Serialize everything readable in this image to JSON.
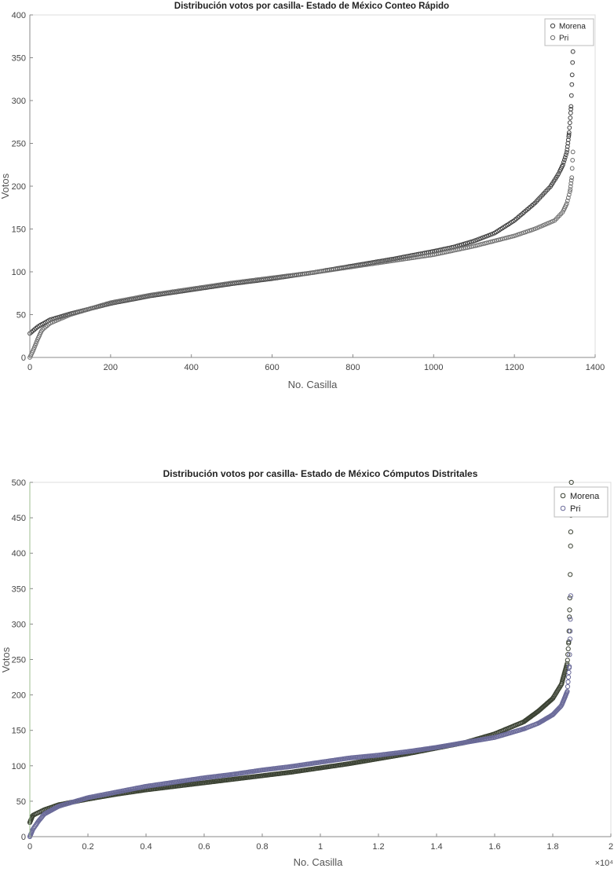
{
  "chart_data": [
    {
      "type": "scatter",
      "title": "Distribución votos por casilla- Estado de México Conteo Rápido",
      "xlabel": "No. Casilla",
      "ylabel": "Votos",
      "xlim": [
        0,
        1400
      ],
      "ylim": [
        0,
        400
      ],
      "xticks": [
        0,
        200,
        400,
        600,
        800,
        1000,
        1200,
        1400
      ],
      "yticks": [
        0,
        50,
        100,
        150,
        200,
        250,
        300,
        350,
        400
      ],
      "xtick_labels": [
        "0",
        "200",
        "400",
        "600",
        "800",
        "1000",
        "1200",
        "1400"
      ],
      "ytick_labels": [
        "0",
        "50",
        "100",
        "150",
        "200",
        "250",
        "300",
        "350",
        "400"
      ],
      "exponent_label": "",
      "legend_position": "top-right",
      "series": [
        {
          "name": "Morena",
          "color": "#3d3d3d",
          "points": [
            [
              0,
              28
            ],
            [
              20,
              36
            ],
            [
              50,
              44
            ],
            [
              100,
              51
            ],
            [
              150,
              57
            ],
            [
              200,
              63
            ],
            [
              300,
              72
            ],
            [
              400,
              79
            ],
            [
              500,
              86
            ],
            [
              600,
              92
            ],
            [
              700,
              99
            ],
            [
              800,
              107
            ],
            [
              900,
              115
            ],
            [
              1000,
              124
            ],
            [
              1050,
              129
            ],
            [
              1100,
              136
            ],
            [
              1150,
              145
            ],
            [
              1200,
              160
            ],
            [
              1250,
              180
            ],
            [
              1290,
              200
            ],
            [
              1310,
              215
            ],
            [
              1320,
              225
            ],
            [
              1330,
              240
            ],
            [
              1335,
              260
            ],
            [
              1340,
              290
            ],
            [
              1343,
              330
            ],
            [
              1346,
              370
            ]
          ]
        },
        {
          "name": "Pri",
          "color": "#6e6e6e",
          "points": [
            [
              0,
              0
            ],
            [
              10,
              10
            ],
            [
              20,
              22
            ],
            [
              30,
              32
            ],
            [
              50,
              40
            ],
            [
              100,
              50
            ],
            [
              150,
              57
            ],
            [
              200,
              64
            ],
            [
              300,
              73
            ],
            [
              400,
              80
            ],
            [
              500,
              87
            ],
            [
              600,
              93
            ],
            [
              700,
              99
            ],
            [
              800,
              106
            ],
            [
              900,
              113
            ],
            [
              1000,
              120
            ],
            [
              1100,
              130
            ],
            [
              1150,
              136
            ],
            [
              1200,
              142
            ],
            [
              1250,
              150
            ],
            [
              1300,
              160
            ],
            [
              1320,
              170
            ],
            [
              1330,
              180
            ],
            [
              1338,
              195
            ],
            [
              1342,
              210
            ],
            [
              1345,
              240
            ]
          ]
        }
      ]
    },
    {
      "type": "scatter",
      "title": "Distribución votos por casilla- Estado de México Cómputos Distritales",
      "xlabel": "No. Casilla",
      "ylabel": "Votos",
      "xlim": [
        0,
        20000
      ],
      "ylim": [
        0,
        500
      ],
      "xticks": [
        0,
        2000,
        4000,
        6000,
        8000,
        10000,
        12000,
        14000,
        16000,
        18000,
        20000
      ],
      "yticks": [
        0,
        50,
        100,
        150,
        200,
        250,
        300,
        350,
        400,
        450,
        500
      ],
      "xtick_labels": [
        "0",
        "0.2",
        "0.4",
        "0.6",
        "0.8",
        "1",
        "1.2",
        "1.4",
        "1.6",
        "1.8",
        "2"
      ],
      "ytick_labels": [
        "0",
        "50",
        "100",
        "150",
        "200",
        "250",
        "300",
        "350",
        "400",
        "450",
        "500"
      ],
      "exponent_label": "×10⁴",
      "legend_position": "top-right",
      "series": [
        {
          "name": "Morena",
          "color": "#3b4233",
          "points": [
            [
              0,
              20
            ],
            [
              100,
              30
            ],
            [
              500,
              38
            ],
            [
              1000,
              45
            ],
            [
              2000,
              53
            ],
            [
              3000,
              60
            ],
            [
              4000,
              66
            ],
            [
              5000,
              71
            ],
            [
              6000,
              76
            ],
            [
              7000,
              81
            ],
            [
              8000,
              86
            ],
            [
              9000,
              91
            ],
            [
              10000,
              97
            ],
            [
              11000,
              103
            ],
            [
              12000,
              110
            ],
            [
              13000,
              117
            ],
            [
              14000,
              125
            ],
            [
              15000,
              133
            ],
            [
              16000,
              145
            ],
            [
              17000,
              162
            ],
            [
              17500,
              177
            ],
            [
              18000,
              195
            ],
            [
              18300,
              215
            ],
            [
              18500,
              245
            ],
            [
              18550,
              275
            ],
            [
              18580,
              320
            ],
            [
              18600,
              370
            ],
            [
              18620,
              430
            ],
            [
              18640,
              500
            ]
          ]
        },
        {
          "name": "Pri",
          "color": "#6b6b9a",
          "points": [
            [
              0,
              0
            ],
            [
              100,
              10
            ],
            [
              300,
              22
            ],
            [
              500,
              32
            ],
            [
              1000,
              43
            ],
            [
              2000,
              55
            ],
            [
              3000,
              63
            ],
            [
              4000,
              71
            ],
            [
              5000,
              77
            ],
            [
              6000,
              83
            ],
            [
              7000,
              88
            ],
            [
              8000,
              94
            ],
            [
              9000,
              99
            ],
            [
              10000,
              105
            ],
            [
              11000,
              111
            ],
            [
              12000,
              115
            ],
            [
              13000,
              120
            ],
            [
              14000,
              126
            ],
            [
              15000,
              133
            ],
            [
              16000,
              140
            ],
            [
              17000,
              152
            ],
            [
              17500,
              160
            ],
            [
              18000,
              172
            ],
            [
              18300,
              185
            ],
            [
              18500,
              205
            ],
            [
              18570,
              240
            ],
            [
              18600,
              290
            ],
            [
              18620,
              340
            ]
          ]
        }
      ]
    }
  ]
}
